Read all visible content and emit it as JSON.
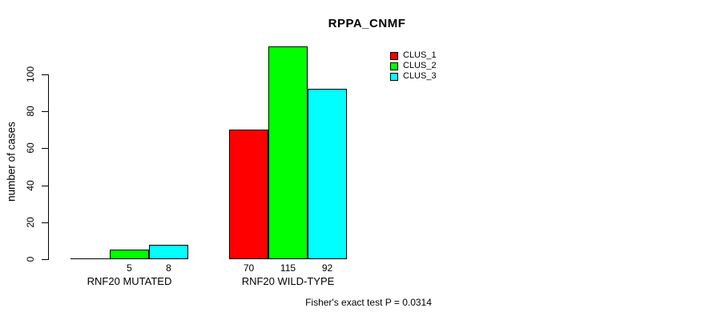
{
  "title": "RPPA_CNMF",
  "y_axis": {
    "label": "number of cases",
    "ticks": [
      0,
      20,
      40,
      60,
      80,
      100
    ]
  },
  "footer_note": "Fisher's exact test P = 0.0314",
  "legend": {
    "position": "top-right",
    "items": [
      {
        "label": "CLUS_1",
        "color": "#FF0000"
      },
      {
        "label": "CLUS_2",
        "color": "#00FF00"
      },
      {
        "label": "CLUS_3",
        "color": "#00FFFF"
      }
    ]
  },
  "chart_data": {
    "type": "bar",
    "title": "RPPA_CNMF",
    "xlabel": "",
    "ylabel": "number of cases",
    "ylim": [
      0,
      100
    ],
    "grid": false,
    "legend_position": "top-right",
    "categories": [
      "RNF20 MUTATED",
      "RNF20 WILD-TYPE"
    ],
    "series": [
      {
        "name": "CLUS_1",
        "color": "#FF0000",
        "values": [
          0,
          70
        ]
      },
      {
        "name": "CLUS_2",
        "color": "#00FF00",
        "values": [
          5,
          115
        ]
      },
      {
        "name": "CLUS_3",
        "color": "#00FFFF",
        "values": [
          8,
          92
        ]
      }
    ],
    "bar_value_labels": [
      [
        null,
        "5",
        "8"
      ],
      [
        "70",
        "115",
        "92"
      ]
    ],
    "annotation": "Fisher's exact test P = 0.0314"
  }
}
